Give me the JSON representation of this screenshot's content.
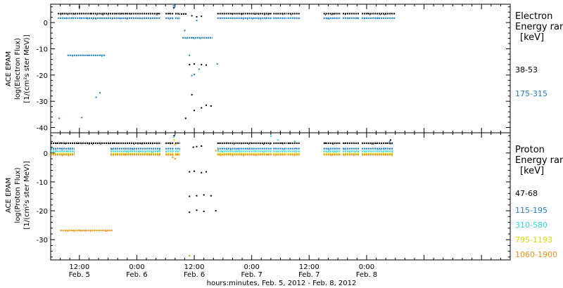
{
  "x_axis": {
    "title": "hours:minutes, Feb.  5, 2012 - Feb.  8, 2012",
    "range_hours": [
      0,
      96
    ],
    "ticks": [
      {
        "hour": 6,
        "time": "12:00",
        "date": "Feb. 5"
      },
      {
        "hour": 18,
        "time": "0:00",
        "date": "Feb. 6"
      },
      {
        "hour": 30,
        "time": "12:00",
        "date": "Feb. 6"
      },
      {
        "hour": 42,
        "time": "0:00",
        "date": "Feb. 7"
      },
      {
        "hour": 54,
        "time": "12:00",
        "date": "Feb. 7"
      },
      {
        "hour": 66,
        "time": "0:00",
        "date": "Feb. 8"
      }
    ]
  },
  "chart_data": [
    {
      "type": "scatter",
      "ylabel": [
        "ACE EPAM",
        "log(Electron Flux)",
        "[1/(cm²s ster MeV)]"
      ],
      "ylim": [
        -42,
        7
      ],
      "yticks": [
        0,
        -10,
        -20,
        -30,
        -40
      ],
      "legend": {
        "title": [
          "Electron",
          "Energy ranges",
          "[keV]"
        ],
        "placement": "right",
        "entries": [
          {
            "label": "38-53",
            "color": "#000000"
          },
          {
            "label": "175-315",
            "color": "#1f7fd0"
          }
        ]
      },
      "series": [
        {
          "color": "#000000",
          "segments": [
            [
              1.5,
              8.4,
              3.4
            ],
            [
              8.4,
              23.0,
              3.4
            ],
            [
              24.0,
              25.6,
              3.4
            ],
            [
              26.0,
              27.0,
              3.4
            ],
            [
              27.2,
              28.5,
              3.3
            ],
            [
              34.8,
              46.2,
              3.4
            ],
            [
              46.5,
              49.3,
              3.4
            ],
            [
              49.5,
              52.0,
              3.4
            ],
            [
              57.0,
              60.6,
              3.4
            ],
            [
              61.0,
              64.5,
              3.4
            ],
            [
              65.0,
              72.0,
              3.4
            ]
          ],
          "points": [
            [
              6.0,
              6.0
            ],
            [
              25.7,
              5.6
            ],
            [
              29.0,
              -16.0
            ],
            [
              30.0,
              -15.8
            ],
            [
              31.5,
              -16.0
            ],
            [
              32.5,
              -16.2
            ],
            [
              28.2,
              -36.5
            ],
            [
              29.5,
              -27.5
            ],
            [
              30.0,
              -33.5
            ],
            [
              31.5,
              -32.5
            ],
            [
              32.5,
              -31.5
            ],
            [
              33.5,
              -31.8
            ],
            [
              29.5,
              2.6
            ],
            [
              30.5,
              2.2
            ],
            [
              31.5,
              2.4
            ]
          ]
        },
        {
          "color": "#1f7fd0",
          "segments": [
            [
              1.5,
              7.5,
              1.7
            ],
            [
              7.5,
              23.0,
              1.7
            ],
            [
              24.0,
              25.6,
              1.7
            ],
            [
              26.0,
              27.0,
              1.7
            ],
            [
              34.8,
              46.2,
              1.7
            ],
            [
              46.5,
              49.3,
              1.7
            ],
            [
              49.5,
              52.0,
              1.7
            ],
            [
              57.0,
              60.6,
              1.7
            ],
            [
              61.0,
              64.5,
              1.7
            ],
            [
              65.0,
              72.0,
              1.7
            ],
            [
              3.5,
              11.5,
              -12.5
            ],
            [
              27.5,
              33.8,
              -5.8
            ]
          ],
          "points": [
            [
              1.8,
              -36.5
            ],
            [
              6.5,
              -36.2
            ],
            [
              9.5,
              -28.5
            ],
            [
              10.3,
              -26.8
            ],
            [
              25.7,
              6.4
            ],
            [
              25.9,
              5.9
            ],
            [
              29.5,
              -20.2
            ],
            [
              30.0,
              -19.8
            ],
            [
              31.0,
              -17.8
            ],
            [
              34.8,
              -15.8
            ],
            [
              29.0,
              -12.5
            ],
            [
              30.5,
              0.8
            ],
            [
              28.0,
              -3.0
            ]
          ]
        }
      ]
    },
    {
      "type": "scatter",
      "ylabel": [
        "ACE EPAM",
        "log(Proton Flux)",
        "[1/(cm²s ster MeV)]"
      ],
      "ylim": [
        -37,
        7
      ],
      "yticks": [
        0,
        -10,
        -20,
        -30
      ],
      "legend": {
        "title": [
          "Proton",
          "Energy ranges",
          "[keV]"
        ],
        "placement": "right",
        "entries": [
          {
            "label": "47-68",
            "color": "#000000"
          },
          {
            "label": "115-195",
            "color": "#1f7fd0"
          },
          {
            "label": "310-580",
            "color": "#2fd8e0"
          },
          {
            "label": "795-1193",
            "color": "#d8dc00"
          },
          {
            "label": "1060-1900",
            "color": "#f09010"
          }
        ]
      },
      "series": [
        {
          "color": "#000000",
          "segments": [
            [
              0.0,
              23.0,
              3.4
            ],
            [
              24.0,
              25.6,
              3.4
            ],
            [
              26.0,
              27.0,
              3.4
            ],
            [
              34.8,
              46.2,
              3.4
            ],
            [
              46.5,
              49.3,
              3.4
            ],
            [
              49.5,
              52.0,
              3.4
            ],
            [
              57.0,
              60.6,
              3.4
            ],
            [
              61.0,
              64.5,
              3.4
            ],
            [
              65.0,
              71.5,
              3.4
            ]
          ],
          "points": [
            [
              29.0,
              -6.5
            ],
            [
              30.0,
              -6.3
            ],
            [
              31.5,
              -6.8
            ],
            [
              32.5,
              -6.5
            ],
            [
              29.0,
              -15.0
            ],
            [
              30.5,
              -14.8
            ],
            [
              32.0,
              -14.5
            ],
            [
              33.5,
              -14.8
            ],
            [
              29.0,
              -20.5
            ],
            [
              30.5,
              -19.8
            ],
            [
              32.0,
              -20.2
            ],
            [
              34.5,
              -20.0
            ],
            [
              30.5,
              2.2
            ],
            [
              31.5,
              2.4
            ],
            [
              29.8,
              2.0
            ],
            [
              25.8,
              6.0
            ],
            [
              71.0,
              4.5
            ]
          ]
        },
        {
          "color": "#1f7fd0",
          "segments": [
            [
              0.0,
              5.0,
              1.5
            ],
            [
              12.5,
              23.0,
              1.5
            ],
            [
              24.0,
              25.6,
              1.5
            ],
            [
              26.0,
              27.0,
              1.5
            ],
            [
              34.8,
              46.2,
              1.5
            ],
            [
              46.5,
              49.3,
              1.5
            ],
            [
              49.5,
              52.0,
              1.5
            ],
            [
              57.0,
              60.6,
              1.5
            ],
            [
              61.0,
              64.5,
              1.5
            ],
            [
              65.0,
              71.5,
              1.5
            ]
          ],
          "points": [
            [
              70.8,
              4.0
            ],
            [
              71.2,
              3.2
            ]
          ]
        },
        {
          "color": "#2fd8e0",
          "segments": [
            [
              0.0,
              5.0,
              0.6
            ],
            [
              12.5,
              23.0,
              0.6
            ],
            [
              24.0,
              25.6,
              0.6
            ],
            [
              26.0,
              27.0,
              0.6
            ],
            [
              34.8,
              46.2,
              0.6
            ],
            [
              46.5,
              49.3,
              0.6
            ],
            [
              49.5,
              52.0,
              0.6
            ],
            [
              57.0,
              60.6,
              0.6
            ],
            [
              61.0,
              64.5,
              0.6
            ],
            [
              65.0,
              71.5,
              0.6
            ]
          ],
          "points": [
            [
              25.7,
              5.5
            ],
            [
              46.0,
              5.8
            ],
            [
              47.5,
              4.5
            ],
            [
              51.0,
              4.0
            ]
          ]
        },
        {
          "color": "#d8dc00",
          "segments": [
            [
              0.0,
              5.0,
              -0.2
            ],
            [
              12.5,
              23.0,
              -0.2
            ],
            [
              24.0,
              25.6,
              -0.2
            ],
            [
              26.0,
              27.0,
              -0.2
            ],
            [
              34.8,
              46.2,
              -0.2
            ],
            [
              46.5,
              49.3,
              -0.2
            ],
            [
              49.5,
              52.0,
              -0.2
            ],
            [
              57.0,
              60.6,
              -0.2
            ],
            [
              61.0,
              64.5,
              -0.2
            ],
            [
              65.0,
              71.5,
              -0.2
            ]
          ],
          "points": [
            [
              25.8,
              4.5
            ],
            [
              25.6,
              -0.8
            ]
          ]
        },
        {
          "color": "#f09010",
          "segments": [
            [
              0.0,
              5.0,
              -0.6
            ],
            [
              12.5,
              23.0,
              -0.6
            ],
            [
              24.0,
              25.6,
              -0.6
            ],
            [
              26.0,
              27.0,
              -0.6
            ],
            [
              34.8,
              46.2,
              -0.6
            ],
            [
              46.5,
              49.3,
              -0.6
            ],
            [
              49.5,
              52.0,
              -0.6
            ],
            [
              57.0,
              60.6,
              -0.6
            ],
            [
              61.0,
              64.5,
              -0.6
            ],
            [
              65.0,
              71.5,
              -0.6
            ],
            [
              2.0,
              13.0,
              -26.8
            ]
          ],
          "points": [
            [
              26.0,
              3.0
            ],
            [
              25.5,
              -1.5
            ],
            [
              26.0,
              -2.0
            ],
            [
              29.0,
              -35.5
            ],
            [
              34.5,
              0.8
            ],
            [
              35.0,
              1.2
            ]
          ]
        }
      ]
    }
  ]
}
